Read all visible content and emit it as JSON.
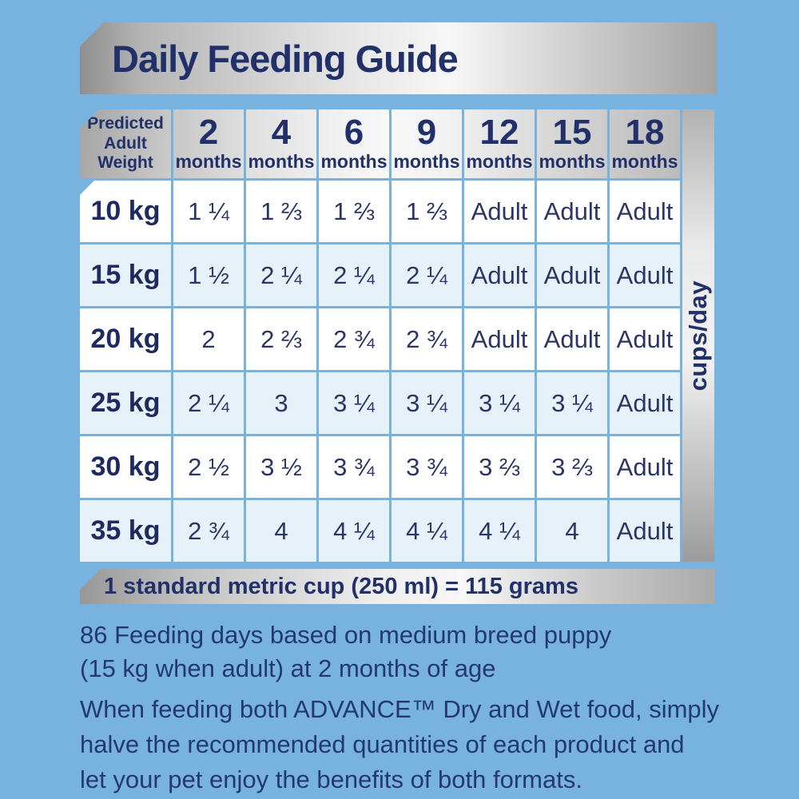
{
  "title": "Daily Feeding Guide",
  "table": {
    "corner_header": [
      "Predicted",
      "Adult",
      "Weight"
    ],
    "unit_label": "cups/day",
    "columns": [
      {
        "num": "2",
        "unit": "months"
      },
      {
        "num": "4",
        "unit": "months"
      },
      {
        "num": "6",
        "unit": "months"
      },
      {
        "num": "9",
        "unit": "months"
      },
      {
        "num": "12",
        "unit": "months"
      },
      {
        "num": "15",
        "unit": "months"
      },
      {
        "num": "18",
        "unit": "months"
      }
    ],
    "rows": [
      {
        "weight": "10 kg",
        "values": [
          "1 ¼",
          "1 ⅔",
          "1 ⅔",
          "1 ⅔",
          "Adult",
          "Adult",
          "Adult"
        ]
      },
      {
        "weight": "15 kg",
        "values": [
          "1 ½",
          "2 ¼",
          "2 ¼",
          "2 ¼",
          "Adult",
          "Adult",
          "Adult"
        ]
      },
      {
        "weight": "20 kg",
        "values": [
          "2",
          "2 ⅔",
          "2 ¾",
          "2 ¾",
          "Adult",
          "Adult",
          "Adult"
        ]
      },
      {
        "weight": "25 kg",
        "values": [
          "2 ¼",
          "3",
          "3 ¼",
          "3 ¼",
          "3 ¼",
          "3 ¼",
          "Adult"
        ]
      },
      {
        "weight": "30 kg",
        "values": [
          "2 ½",
          "3 ½",
          "3 ¾",
          "3 ¾",
          "3 ⅔",
          "3 ⅔",
          "Adult"
        ]
      },
      {
        "weight": "35 kg",
        "values": [
          "2 ¾",
          "4",
          "4 ¼",
          "4 ¼",
          "4 ¼",
          "4",
          "Adult"
        ]
      }
    ]
  },
  "cup_note": "1 standard metric cup (250 ml) = 115 grams",
  "footnotes": {
    "feeding_days": [
      "86 Feeding days based on medium breed puppy",
      "(15 kg when adult) at 2 months of age"
    ],
    "mixed_feeding": [
      "When feeding both ADVANCE™ Dry and Wet food, simply",
      "halve the recommended quantities of each product and",
      "let your pet enjoy the benefits of both formats."
    ]
  },
  "colors": {
    "background": "#78b3e0",
    "navy_text": "#22306a",
    "pale_row": "#e7f1f9",
    "white_row": "#ffffff",
    "silver_light": "#f7f7f7",
    "silver_dark": "#979797"
  }
}
